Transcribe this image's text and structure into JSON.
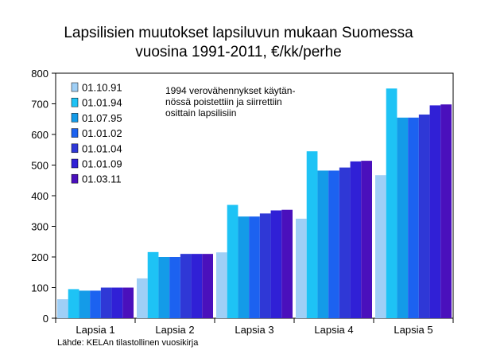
{
  "chart_data": {
    "type": "bar",
    "title": "Lapsilisien muutokset lapsiluvun mukaan Suomessa",
    "subtitle": "vuosina 1991-2011, €/kk/perhe",
    "xlabel": "",
    "ylabel": "",
    "ylim": [
      0,
      800
    ],
    "yticks": [
      "0",
      "100",
      "200",
      "300",
      "400",
      "500",
      "600",
      "700",
      "800"
    ],
    "grid": false,
    "legend_position": "top-left",
    "categories": [
      "Lapsia 1",
      "Lapsia 2",
      "Lapsia 3",
      "Lapsia 4",
      "Lapsia 5"
    ],
    "series": [
      {
        "name": "01.10.91",
        "color": "#9fcff6",
        "values": [
          62,
          130,
          215,
          325,
          467
        ]
      },
      {
        "name": "01.01.94",
        "color": "#1ec3f5",
        "values": [
          95,
          216,
          370,
          545,
          750
        ]
      },
      {
        "name": "01.07.95",
        "color": "#149be8",
        "values": [
          90,
          200,
          332,
          482,
          655
        ]
      },
      {
        "name": "01.01.02",
        "color": "#1c62f0",
        "values": [
          90,
          200,
          332,
          482,
          655
        ]
      },
      {
        "name": "01.01.04",
        "color": "#2f38d6",
        "values": [
          100,
          210,
          342,
          492,
          665
        ]
      },
      {
        "name": "01.01.09",
        "color": "#3020d6",
        "values": [
          100,
          210,
          352,
          512,
          695
        ]
      },
      {
        "name": "01.03.11",
        "color": "#4a10bc",
        "values": [
          100,
          210,
          354,
          514,
          698
        ]
      }
    ],
    "annotation": "1994 verovähennykset käytän-nössä poistettiin ja siirrettiin osittain lapsilisiin"
  },
  "annotation_lines": [
    "1994 verovähennykset käytän-",
    "nössä poistettiin ja siirrettiin",
    "osittain lapsilisiin"
  ],
  "source": "Lähde: KELAn tilastollinen vuosikirja"
}
